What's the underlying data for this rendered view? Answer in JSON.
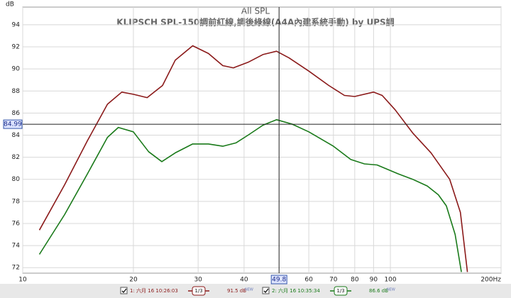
{
  "chart_data": {
    "type": "line",
    "title": "All SPL",
    "subtitle": "KLIPSCH SPL-150調前紅線,調後綠線(A4A內建系統手動) by UPS調",
    "y_label": "dB",
    "log_x": true,
    "grid": true,
    "xlim": [
      10,
      200
    ],
    "ylim": [
      71.5,
      95.6
    ],
    "xticks": [
      10,
      20,
      30,
      40,
      60,
      70,
      80,
      90,
      100,
      {
        "value": 200,
        "label": "200Hz"
      }
    ],
    "yticks": [
      72,
      74,
      76,
      78,
      80,
      82,
      84,
      86,
      88,
      90,
      92,
      94
    ],
    "cursor": {
      "x": 49.8,
      "y": 84.99
    },
    "series": [
      {
        "name": "1: 六月 16 10:26:03",
        "color": "#8b1a1a",
        "smoothing": "1/3",
        "legend_label": "91.5 dB",
        "badge": "NEW",
        "x": [
          11.1,
          13,
          15,
          17,
          18.6,
          20,
          21.8,
          24,
          26,
          29,
          32,
          35,
          37.4,
          41,
          45,
          49,
          53,
          60,
          68,
          75,
          80,
          90,
          95,
          103,
          115,
          129,
          145,
          155,
          162
        ],
        "values": [
          75.4,
          79.5,
          83.5,
          86.8,
          87.9,
          87.7,
          87.4,
          88.5,
          90.8,
          92.1,
          91.4,
          90.3,
          90.1,
          90.6,
          91.3,
          91.6,
          91.0,
          89.8,
          88.5,
          87.6,
          87.5,
          87.9,
          87.6,
          86.3,
          84.2,
          82.4,
          80.0,
          77,
          71.6
        ]
      },
      {
        "name": "2: 六月 16 10:35:34",
        "color": "#1a7a1a",
        "smoothing": "1/3",
        "legend_label": "86.6 dB",
        "badge": "NEW",
        "x": [
          11.1,
          13,
          15,
          17,
          18.2,
          20,
          22,
          23.9,
          26,
          29,
          32,
          35,
          38,
          41,
          45,
          49,
          54,
          60,
          70,
          78,
          85,
          92,
          105,
          115,
          126,
          135,
          142,
          150,
          156
        ],
        "values": [
          73.2,
          76.8,
          80.5,
          83.8,
          84.7,
          84.3,
          82.5,
          81.6,
          82.4,
          83.2,
          83.2,
          83.0,
          83.3,
          84.0,
          84.9,
          85.4,
          85.0,
          84.3,
          83.0,
          81.8,
          81.4,
          81.3,
          80.5,
          80.0,
          79.4,
          78.6,
          77.6,
          75,
          71.6
        ]
      }
    ]
  }
}
